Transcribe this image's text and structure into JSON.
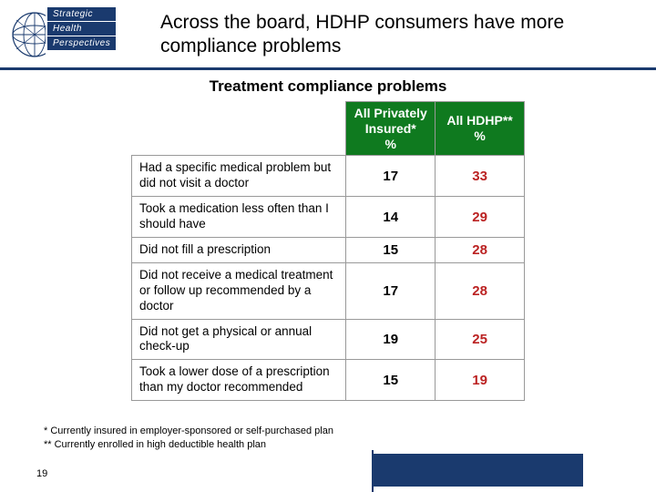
{
  "logo": {
    "words": [
      "Strategic",
      "Health",
      "Perspectives"
    ]
  },
  "title": "Across the board, HDHP consumers have more compliance problems",
  "subtitle": "Treatment compliance problems",
  "table": {
    "header_bg": "#0f7a1f",
    "col1_label": "All Privately Insured*",
    "col2_label": "All HDHP**",
    "pct_suffix": "%",
    "col1_color": "#000000",
    "col2_color": "#bb2222",
    "rows": [
      {
        "label": "Had a specific medical problem but did not visit a doctor",
        "v1": "17",
        "v2": "33"
      },
      {
        "label": "Took a medication less often than I should have",
        "v1": "14",
        "v2": "29"
      },
      {
        "label": "Did not fill a prescription",
        "v1": "15",
        "v2": "28"
      },
      {
        "label": "Did not receive a medical treatment or follow up recommended by a doctor",
        "v1": "17",
        "v2": "28"
      },
      {
        "label": "Did not get a physical or annual check-up",
        "v1": "19",
        "v2": "25"
      },
      {
        "label": "Took a lower dose of a prescription than my doctor recommended",
        "v1": "15",
        "v2": "19"
      }
    ]
  },
  "footnotes": {
    "l1": "* Currently insured in employer-sponsored or self-purchased plan",
    "l2": "** Currently enrolled in high deductible health plan"
  },
  "page_number": "19",
  "colors": {
    "brand_navy": "#1a3a6e"
  }
}
